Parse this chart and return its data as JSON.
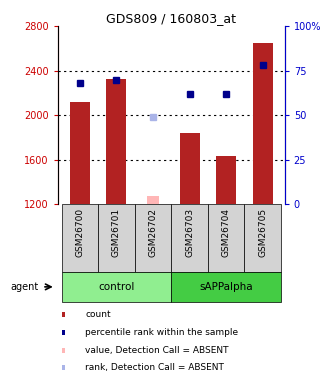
{
  "title": "GDS809 / 160803_at",
  "samples": [
    "GSM26700",
    "GSM26701",
    "GSM26702",
    "GSM26703",
    "GSM26704",
    "GSM26705"
  ],
  "bar_values": [
    2120,
    2330,
    null,
    1840,
    1635,
    2650
  ],
  "bar_absent_values": [
    null,
    null,
    1275,
    null,
    null,
    null
  ],
  "rank_values": [
    68,
    70,
    null,
    62,
    62,
    78
  ],
  "rank_absent_values": [
    null,
    null,
    49,
    null,
    null,
    null
  ],
  "bar_color": "#b22222",
  "bar_absent_color": "#ffb6b6",
  "rank_color": "#00008b",
  "rank_absent_color": "#aab4e8",
  "ylim_left": [
    1200,
    2800
  ],
  "ylim_right": [
    0,
    100
  ],
  "yticks_left": [
    1200,
    1600,
    2000,
    2400,
    2800
  ],
  "yticks_right": [
    0,
    25,
    50,
    75,
    100
  ],
  "ytick_labels_right": [
    "0",
    "25",
    "50",
    "75",
    "100%"
  ],
  "left_tick_color": "#cc0000",
  "right_tick_color": "#0000cc",
  "group_colors": {
    "control": "#90ee90",
    "sAPPalpha": "#44cc44"
  },
  "group_boundaries": [
    [
      0,
      3,
      "control"
    ],
    [
      3,
      6,
      "sAPPalpha"
    ]
  ],
  "bar_width": 0.55,
  "legend_items": [
    {
      "label": "count",
      "color": "#b22222"
    },
    {
      "label": "percentile rank within the sample",
      "color": "#00008b"
    },
    {
      "label": "value, Detection Call = ABSENT",
      "color": "#ffb6b6"
    },
    {
      "label": "rank, Detection Call = ABSENT",
      "color": "#aab4e8"
    }
  ]
}
